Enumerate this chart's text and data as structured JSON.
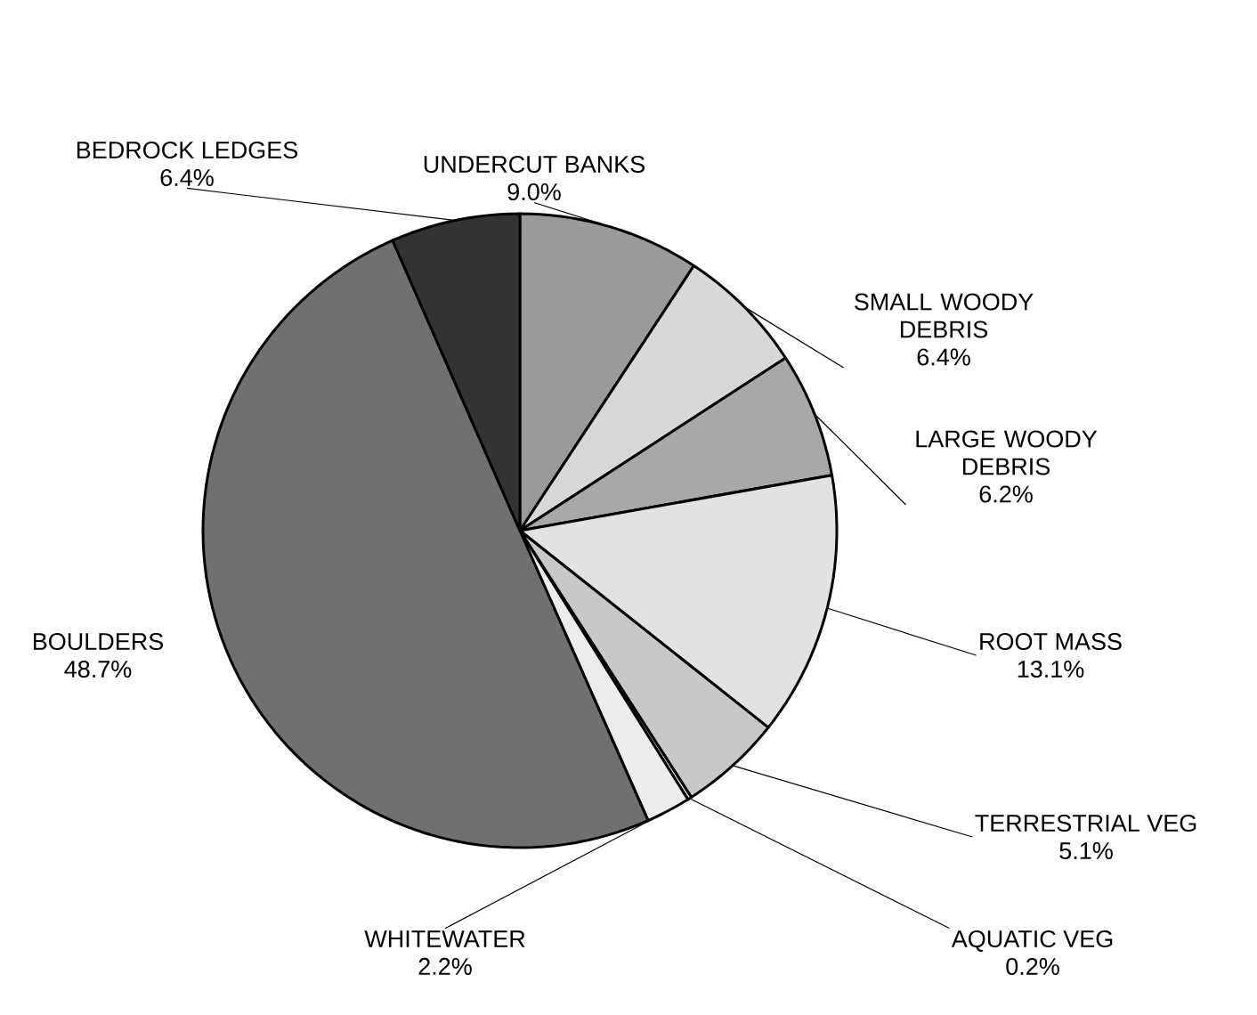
{
  "chart_data": {
    "type": "pie",
    "categories": [
      "UNDERCUT BANKS",
      "SMALL WOODY DEBRIS",
      "LARGE WOODY DEBRIS",
      "ROOT MASS",
      "TERRESTRIAL VEG",
      "AQUATIC VEG",
      "WHITEWATER",
      "BOULDERS",
      "BEDROCK LEDGES"
    ],
    "values": [
      9.0,
      6.4,
      6.2,
      13.1,
      5.1,
      0.2,
      2.2,
      48.7,
      6.4
    ],
    "value_labels": [
      "9.0%",
      "6.4%",
      "6.2%",
      "13.1%",
      "5.1%",
      "0.2%",
      "2.2%",
      "48.7%",
      "6.4%"
    ],
    "colors": [
      "#9a9a9a",
      "#d8d8d8",
      "#a8a8a8",
      "#e2e2e2",
      "#c8c8c8",
      "#f0f0f0",
      "#ececec",
      "#707070",
      "#333333"
    ]
  }
}
